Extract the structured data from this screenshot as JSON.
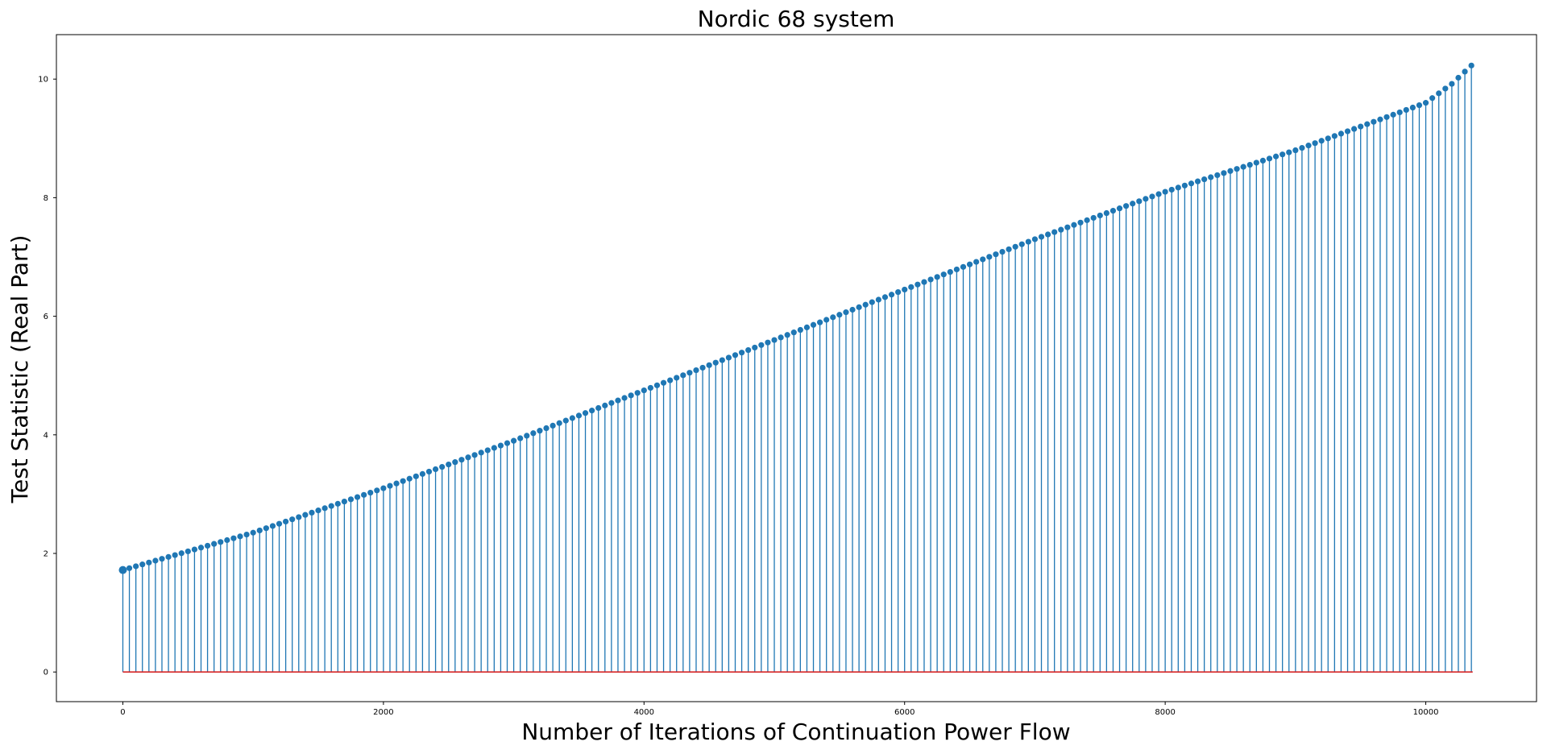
{
  "chart_data": {
    "type": "stem",
    "title": "Nordic 68 system",
    "xlabel": "Number of Iterations of Continuation Power Flow",
    "ylabel": "Test Statistic (Real Part)",
    "xlim": [
      -510,
      10850
    ],
    "ylim": [
      -0.5,
      10.75
    ],
    "xticks": [
      0,
      2000,
      4000,
      6000,
      8000,
      10000
    ],
    "yticks": [
      0,
      2,
      4,
      6,
      8,
      10
    ],
    "x_range": [
      0,
      10360
    ],
    "stem_spacing": 50,
    "baseline_value": 0,
    "curve_points": [
      {
        "x": 0,
        "y": 1.72
      },
      {
        "x": 1000,
        "y": 2.35
      },
      {
        "x": 2000,
        "y": 3.1
      },
      {
        "x": 3000,
        "y": 3.9
      },
      {
        "x": 4000,
        "y": 4.75
      },
      {
        "x": 5000,
        "y": 5.6
      },
      {
        "x": 6000,
        "y": 6.45
      },
      {
        "x": 7000,
        "y": 7.3
      },
      {
        "x": 8000,
        "y": 8.1
      },
      {
        "x": 9000,
        "y": 8.8
      },
      {
        "x": 10000,
        "y": 9.6
      },
      {
        "x": 10200,
        "y": 9.92
      },
      {
        "x": 10360,
        "y": 10.25
      }
    ],
    "grid": false,
    "colors": {
      "stem": "#1f77b4",
      "marker": "#1f77b4",
      "baseline": "#d62728",
      "frame": "#000000"
    }
  }
}
